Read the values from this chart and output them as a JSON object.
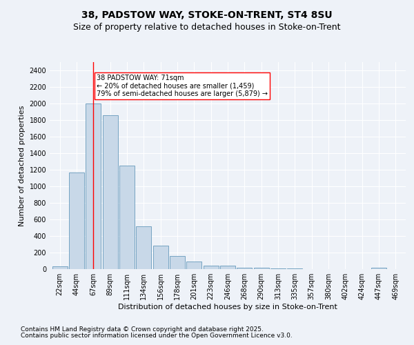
{
  "title1": "38, PADSTOW WAY, STOKE-ON-TRENT, ST4 8SU",
  "title2": "Size of property relative to detached houses in Stoke-on-Trent",
  "xlabel": "Distribution of detached houses by size in Stoke-on-Trent",
  "ylabel": "Number of detached properties",
  "bar_labels": [
    "22sqm",
    "44sqm",
    "67sqm",
    "89sqm",
    "111sqm",
    "134sqm",
    "156sqm",
    "178sqm",
    "201sqm",
    "223sqm",
    "246sqm",
    "268sqm",
    "290sqm",
    "313sqm",
    "335sqm",
    "357sqm",
    "380sqm",
    "402sqm",
    "424sqm",
    "447sqm",
    "469sqm"
  ],
  "bar_values": [
    30,
    1170,
    2000,
    1860,
    1250,
    520,
    280,
    155,
    95,
    45,
    45,
    20,
    15,
    8,
    5,
    4,
    3,
    2,
    2,
    15,
    0
  ],
  "bar_color": "#c8d8e8",
  "bar_edge_color": "#6699bb",
  "vline_x": 2,
  "vline_color": "red",
  "annotation_text": "38 PADSTOW WAY: 71sqm\n← 20% of detached houses are smaller (1,459)\n79% of semi-detached houses are larger (5,879) →",
  "annotation_box_color": "white",
  "annotation_box_edge": "red",
  "ylim": [
    0,
    2500
  ],
  "yticks": [
    0,
    200,
    400,
    600,
    800,
    1000,
    1200,
    1400,
    1600,
    1800,
    2000,
    2200,
    2400
  ],
  "footer1": "Contains HM Land Registry data © Crown copyright and database right 2025.",
  "footer2": "Contains public sector information licensed under the Open Government Licence v3.0.",
  "bg_color": "#eef2f8",
  "grid_color": "white",
  "title_fontsize": 10,
  "subtitle_fontsize": 9,
  "axis_label_fontsize": 8,
  "tick_fontsize": 7,
  "footer_fontsize": 6.5
}
